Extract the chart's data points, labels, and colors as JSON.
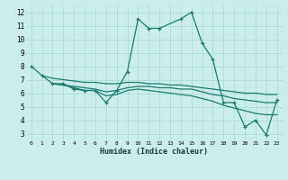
{
  "background_color": "#cceeea",
  "grid_color": "#aaddda",
  "line_color": "#1a7a6e",
  "xlabel": "Humidex (Indice chaleur)",
  "xlim": [
    -0.5,
    23.5
  ],
  "ylim": [
    2.5,
    12.5
  ],
  "yticks": [
    3,
    4,
    5,
    6,
    7,
    8,
    9,
    10,
    11,
    12
  ],
  "xticks": [
    0,
    1,
    2,
    3,
    4,
    5,
    6,
    7,
    8,
    9,
    10,
    11,
    12,
    13,
    14,
    15,
    16,
    17,
    18,
    19,
    20,
    21,
    22,
    23
  ],
  "series": [
    {
      "x": [
        0,
        1,
        2,
        3,
        4,
        5,
        6,
        7,
        8,
        9,
        10,
        11,
        12,
        14,
        15,
        16,
        17,
        18,
        19,
        20,
        21,
        22,
        23
      ],
      "y": [
        8.0,
        7.3,
        6.7,
        6.7,
        6.3,
        6.2,
        6.2,
        5.3,
        6.2,
        7.6,
        11.5,
        10.8,
        10.8,
        11.5,
        12.0,
        9.7,
        8.5,
        5.3,
        5.3,
        3.5,
        4.0,
        2.9,
        5.5
      ],
      "has_markers": true
    },
    {
      "x": [
        1,
        2,
        3,
        4,
        5,
        6,
        7,
        8,
        9,
        10,
        11,
        12,
        13,
        14,
        15,
        16,
        17,
        18,
        19,
        20,
        21,
        22,
        23
      ],
      "y": [
        7.3,
        7.1,
        7.0,
        6.9,
        6.8,
        6.8,
        6.7,
        6.7,
        6.8,
        6.8,
        6.7,
        6.7,
        6.6,
        6.6,
        6.5,
        6.4,
        6.3,
        6.2,
        6.1,
        6.0,
        6.0,
        5.9,
        5.9
      ],
      "has_markers": false
    },
    {
      "x": [
        2,
        3,
        4,
        5,
        6,
        7,
        8,
        9,
        10,
        11,
        12,
        13,
        14,
        15,
        16,
        17,
        18,
        19,
        20,
        21,
        22,
        23
      ],
      "y": [
        6.7,
        6.6,
        6.5,
        6.4,
        6.3,
        6.1,
        6.2,
        6.4,
        6.5,
        6.5,
        6.4,
        6.4,
        6.3,
        6.3,
        6.1,
        5.9,
        5.8,
        5.6,
        5.5,
        5.4,
        5.3,
        5.3
      ],
      "has_markers": false
    },
    {
      "x": [
        2,
        3,
        4,
        5,
        6,
        7,
        8,
        9,
        10,
        11,
        12,
        13,
        14,
        15,
        16,
        17,
        18,
        19,
        20,
        21,
        22,
        23
      ],
      "y": [
        6.7,
        6.6,
        6.4,
        6.2,
        6.2,
        5.8,
        5.9,
        6.2,
        6.3,
        6.2,
        6.1,
        6.0,
        5.9,
        5.8,
        5.6,
        5.4,
        5.1,
        4.9,
        4.7,
        4.5,
        4.4,
        4.4
      ],
      "has_markers": false
    }
  ]
}
